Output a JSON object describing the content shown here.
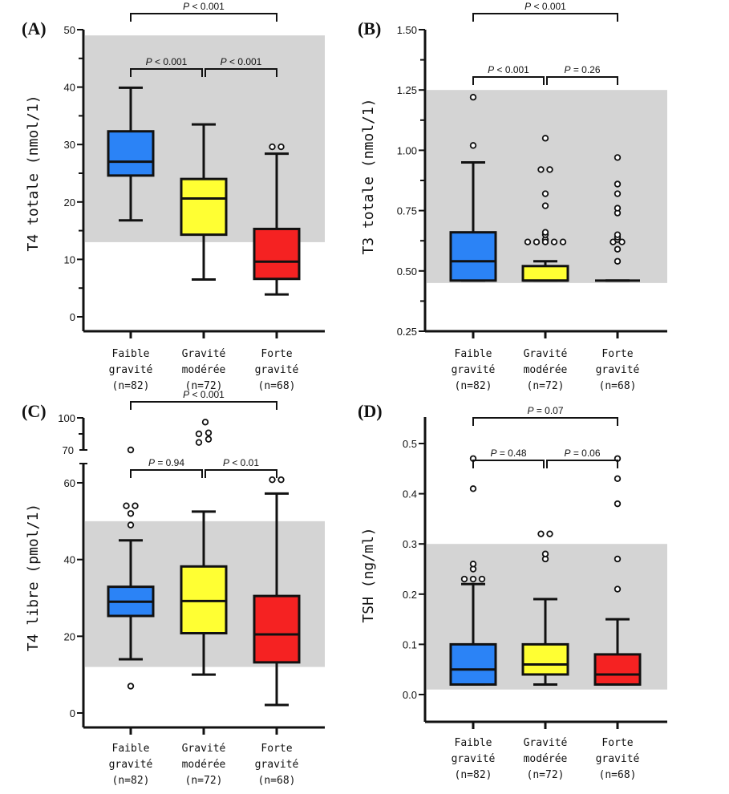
{
  "chart_data": [
    {
      "panel": "(A)",
      "type": "box",
      "ylabel": "T4 totale (nmol/1)",
      "ylim": [
        -2.5,
        50
      ],
      "yticks": [
        0,
        10,
        20,
        30,
        40,
        50
      ],
      "yminor_ticks": [
        5,
        15,
        25,
        35,
        45
      ],
      "reference_range": [
        13,
        49
      ],
      "categories": [
        "Faible gravité (n=82)",
        "Gravité modérée (n=72)",
        "Forte gravité (n=68)"
      ],
      "category_lines": [
        [
          "Faible",
          "gravité",
          "(n=82)"
        ],
        [
          "Gravité",
          "modérée",
          "(n=72)"
        ],
        [
          "Forte",
          "gravité",
          "(n=68)"
        ]
      ],
      "boxes": [
        {
          "min": 16.8,
          "q1": 24.6,
          "median": 27.0,
          "q3": 32.3,
          "max": 39.9,
          "outliers": [],
          "color": "#2b83f6"
        },
        {
          "min": 6.5,
          "q1": 14.3,
          "median": 20.6,
          "q3": 24.0,
          "max": 33.5,
          "outliers": [],
          "color": "#ffff33"
        },
        {
          "min": 3.9,
          "q1": 6.6,
          "median": 9.6,
          "q3": 15.3,
          "max": 28.4,
          "outliers": [
            29.6,
            29.6
          ],
          "color": "#f52222"
        }
      ],
      "comparisons": [
        {
          "groups": [
            0,
            2
          ],
          "label_prefix": "P",
          "label_rest": " < 0.001",
          "level": "top"
        },
        {
          "groups": [
            0,
            1
          ],
          "label_prefix": "P",
          "label_rest": " < 0.001",
          "level": "low"
        },
        {
          "groups": [
            1,
            2
          ],
          "label_prefix": "P",
          "label_rest": " < 0.001",
          "level": "low"
        }
      ]
    },
    {
      "panel": "(B)",
      "type": "box",
      "ylabel": "T3 totale (nmol/1)",
      "ylim": [
        0.25,
        1.5
      ],
      "yticks": [
        0.25,
        0.5,
        0.75,
        1.0,
        1.25,
        1.5
      ],
      "ytick_labels": [
        "0.25",
        "0.50",
        "0.75",
        "1.00",
        "1.25",
        "1.50"
      ],
      "yminor_ticks": [
        0.375,
        0.625,
        0.875,
        1.125,
        1.375
      ],
      "reference_range": [
        0.45,
        1.25
      ],
      "categories": [
        "Faible gravité (n=82)",
        "Gravité modérée (n=72)",
        "Forte gravité (n=68)"
      ],
      "category_lines": [
        [
          "Faible",
          "gravité",
          "(n=82)"
        ],
        [
          "Gravité",
          "modérée",
          "(n=72)"
        ],
        [
          "Forte",
          "gravité",
          "(n=68)"
        ]
      ],
      "boxes": [
        {
          "min": 0.46,
          "q1": 0.46,
          "median": 0.54,
          "q3": 0.66,
          "max": 0.95,
          "outliers": [
            1.02,
            1.22
          ],
          "color": "#2b83f6"
        },
        {
          "min": 0.46,
          "q1": 0.46,
          "median": 0.46,
          "q3": 0.52,
          "max": 0.54,
          "outliers": [
            0.62,
            0.63,
            0.62,
            0.62,
            0.62,
            0.62,
            0.65,
            0.66,
            0.77,
            0.82,
            0.92,
            0.92,
            1.05
          ],
          "color": "#ffff33"
        },
        {
          "min": 0.46,
          "q1": 0.46,
          "median": 0.46,
          "q3": 0.46,
          "max": 0.46,
          "outliers": [
            0.54,
            0.59,
            0.62,
            0.63,
            0.62,
            0.64,
            0.65,
            0.74,
            0.76,
            0.82,
            0.86,
            0.97
          ],
          "color": "#f52222"
        }
      ],
      "comparisons": [
        {
          "groups": [
            0,
            2
          ],
          "label_prefix": "P",
          "label_rest": " < 0.001",
          "level": "top"
        },
        {
          "groups": [
            0,
            1
          ],
          "label_prefix": "P",
          "label_rest": " < 0.001",
          "level": "low"
        },
        {
          "groups": [
            1,
            2
          ],
          "label_prefix": "P",
          "label_rest": " = 0.26",
          "level": "low"
        }
      ]
    },
    {
      "panel": "(C)",
      "type": "box",
      "ylabel": "T4 libre (pmol/1)",
      "ylim": [
        -2.5,
        65
      ],
      "yticks": [
        0,
        20,
        40,
        60
      ],
      "broken_axis_upper": {
        "ticks": [
          70,
          100
        ],
        "minor": [
          85
        ]
      },
      "reference_range": [
        12,
        50
      ],
      "categories": [
        "Faible gravité (n=82)",
        "Gravité modérée (n=72)",
        "Forte gravité (n=68)"
      ],
      "category_lines": [
        [
          "Faible",
          "gravité",
          "(n=82)"
        ],
        [
          "Gravité",
          "modérée",
          "(n=72)"
        ],
        [
          "Forte",
          "gravité",
          "(n=68)"
        ]
      ],
      "boxes": [
        {
          "min": 14.0,
          "q1": 25.3,
          "median": 29.0,
          "q3": 32.9,
          "max": 45.0,
          "outliers": [
            7.0,
            49.0,
            52.0,
            54.0,
            54.0
          ],
          "upper_outliers": [
            70
          ],
          "color": "#2b83f6"
        },
        {
          "min": 10.0,
          "q1": 20.8,
          "median": 29.2,
          "q3": 38.2,
          "max": 52.5,
          "outliers": [],
          "upper_outliers": [
            77,
            85,
            85,
            80,
            96
          ],
          "color": "#ffff33"
        },
        {
          "min": 2.1,
          "q1": 13.2,
          "median": 20.5,
          "q3": 30.5,
          "max": 57.2,
          "outliers": [
            60.8,
            60.8
          ],
          "upper_outliers": [],
          "color": "#f52222"
        }
      ],
      "comparisons": [
        {
          "groups": [
            0,
            2
          ],
          "label_prefix": "P",
          "label_rest": " < 0.001",
          "level": "top"
        },
        {
          "groups": [
            0,
            1
          ],
          "label_prefix": "P",
          "label_rest": " = 0.94",
          "level": "low"
        },
        {
          "groups": [
            1,
            2
          ],
          "label_prefix": "P",
          "label_rest": " < 0.01",
          "level": "low"
        }
      ]
    },
    {
      "panel": "(D)",
      "type": "box",
      "ylabel": "TSH (ng/ml)",
      "ylim": [
        -0.05,
        0.55
      ],
      "yticks": [
        0.0,
        0.1,
        0.2,
        0.3,
        0.4,
        0.5
      ],
      "ytick_labels": [
        "0.0",
        "0.1",
        "0.2",
        "0.3",
        "0.4",
        "0.5"
      ],
      "reference_range": [
        0.01,
        0.3
      ],
      "categories": [
        "Faible gravité (n=82)",
        "Gravité modérée (n=72)",
        "Forte gravité (n=68)"
      ],
      "category_lines": [
        [
          "Faible",
          "gravité",
          "(n=82)"
        ],
        [
          "Gravité",
          "modérée",
          "(n=72)"
        ],
        [
          "Forte",
          "gravité",
          "(n=68)"
        ]
      ],
      "boxes": [
        {
          "min": 0.02,
          "q1": 0.02,
          "median": 0.05,
          "q3": 0.1,
          "max": 0.22,
          "outliers": [
            0.23,
            0.23,
            0.23,
            0.25,
            0.26,
            0.41,
            0.47
          ],
          "color": "#2b83f6"
        },
        {
          "min": 0.02,
          "q1": 0.04,
          "median": 0.06,
          "q3": 0.1,
          "max": 0.19,
          "outliers": [
            0.27,
            0.28,
            0.32,
            0.32
          ],
          "color": "#ffff33"
        },
        {
          "min": 0.02,
          "q1": 0.02,
          "median": 0.04,
          "q3": 0.08,
          "max": 0.15,
          "outliers": [
            0.21,
            0.27,
            0.38,
            0.43,
            0.47
          ],
          "color": "#f52222"
        }
      ],
      "comparisons": [
        {
          "groups": [
            0,
            2
          ],
          "label_prefix": "P",
          "label_rest": " = 0.07",
          "level": "top"
        },
        {
          "groups": [
            0,
            1
          ],
          "label_prefix": "P",
          "label_rest": " = 0.48",
          "level": "low"
        },
        {
          "groups": [
            1,
            2
          ],
          "label_prefix": "P",
          "label_rest": " = 0.06",
          "level": "low"
        }
      ]
    }
  ],
  "colors": {
    "reference_band": "#d4d4d4",
    "axis": "#111111"
  }
}
